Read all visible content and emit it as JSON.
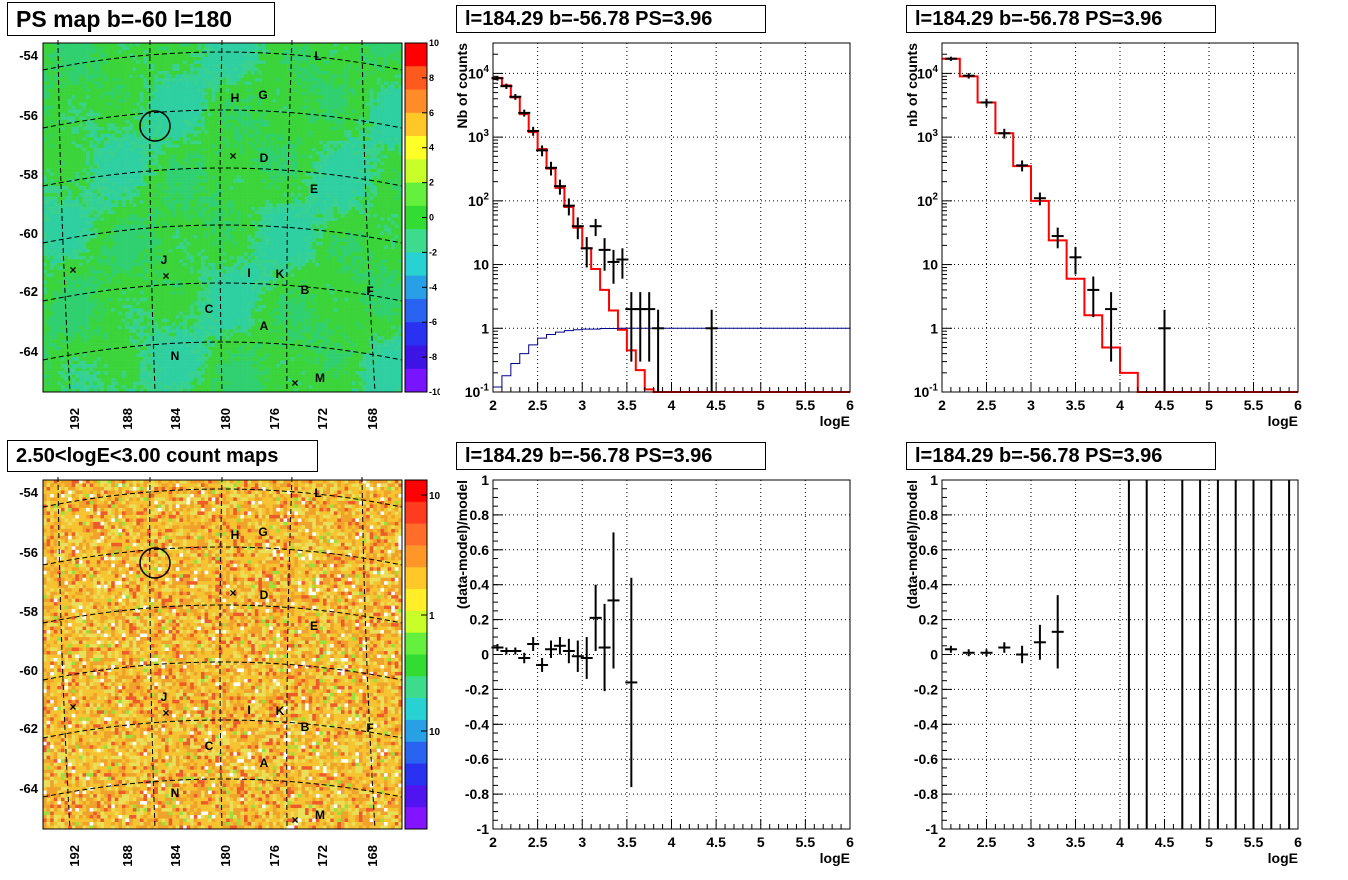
{
  "chart_data": [
    {
      "type": "heatmap",
      "title": "PS map b=-60 l=180",
      "x_ticks": [
        "192",
        "188",
        "184",
        "180",
        "176",
        "172",
        "168"
      ],
      "y_ticks": [
        "-54",
        "-56",
        "-58",
        "-60",
        "-62",
        "-64"
      ],
      "colorbar": {
        "scale": "linear",
        "range": [
          -10,
          10
        ],
        "ticks": [
          "10",
          "8",
          "6",
          "4",
          "2",
          "0",
          "-2",
          "-4",
          "-6",
          "-8",
          "-10"
        ]
      },
      "sources": [
        "L",
        "H",
        "G",
        "D",
        "E",
        "J",
        "I",
        "K",
        "B",
        "F",
        "C",
        "A",
        "N",
        "M"
      ],
      "colors": {
        "map_base": "#3bd43b",
        "map_alt": "#2ecfa0"
      }
    },
    {
      "type": "line",
      "title": "l=184.29 b=-56.78 PS=3.96",
      "xlabel": "logE",
      "ylabel": "Nb of counts",
      "xlim": [
        2,
        6
      ],
      "ylim": [
        0.1,
        30000
      ],
      "yscale": "log",
      "x_ticks": [
        "2",
        "2.5",
        "3",
        "3.5",
        "4",
        "4.5",
        "5",
        "5.5",
        "6"
      ],
      "y_ticks": [
        "10^{-1}",
        "1",
        "10",
        "10^{2}",
        "10^{3}",
        "10^{4}"
      ],
      "grid": true,
      "series": [
        {
          "role": "model",
          "color": "#ff0000",
          "bins": [
            [
              2.0,
              2.1,
              8500
            ],
            [
              2.1,
              2.2,
              6500
            ],
            [
              2.2,
              2.3,
              4200
            ],
            [
              2.3,
              2.4,
              2300
            ],
            [
              2.4,
              2.5,
              1200
            ],
            [
              2.5,
              2.6,
              650
            ],
            [
              2.6,
              2.7,
              320
            ],
            [
              2.7,
              2.8,
              160
            ],
            [
              2.8,
              2.9,
              80
            ],
            [
              2.9,
              3.0,
              38
            ],
            [
              3.0,
              3.1,
              18
            ],
            [
              3.1,
              3.2,
              8.5
            ],
            [
              3.2,
              3.3,
              4
            ],
            [
              3.3,
              3.4,
              1.9
            ],
            [
              3.4,
              3.5,
              0.95
            ],
            [
              3.5,
              3.6,
              0.45
            ],
            [
              3.6,
              3.7,
              0.22
            ],
            [
              3.7,
              3.8,
              0.11
            ],
            [
              3.8,
              3.9,
              0.1
            ],
            [
              3.9,
              4.0,
              0.1
            ],
            [
              4.0,
              6.0,
              0.1
            ]
          ]
        },
        {
          "role": "background",
          "color": "#00008b",
          "bins": [
            [
              2.0,
              2.1,
              0.12
            ],
            [
              2.1,
              2.2,
              0.18
            ],
            [
              2.2,
              2.3,
              0.28
            ],
            [
              2.3,
              2.4,
              0.4
            ],
            [
              2.4,
              2.5,
              0.55
            ],
            [
              2.5,
              2.6,
              0.7
            ],
            [
              2.6,
              2.7,
              0.8
            ],
            [
              2.7,
              2.8,
              0.87
            ],
            [
              2.8,
              2.9,
              0.92
            ],
            [
              2.9,
              3.0,
              0.95
            ],
            [
              3.0,
              3.2,
              0.97
            ],
            [
              3.2,
              3.4,
              0.99
            ],
            [
              3.4,
              6.0,
              1.0
            ]
          ]
        },
        {
          "role": "data",
          "color": "#000000",
          "points": [
            [
              2.05,
              8400,
              700
            ],
            [
              2.15,
              6300,
              600
            ],
            [
              2.25,
              4300,
              450
            ],
            [
              2.35,
              2400,
              300
            ],
            [
              2.45,
              1250,
              200
            ],
            [
              2.55,
              620,
              120
            ],
            [
              2.65,
              330,
              80
            ],
            [
              2.75,
              170,
              45
            ],
            [
              2.85,
              84,
              25
            ],
            [
              2.95,
              40,
              15
            ],
            [
              3.05,
              18,
              9
            ],
            [
              3.15,
              40,
              12
            ],
            [
              3.25,
              17,
              9
            ],
            [
              3.35,
              11,
              6
            ],
            [
              3.45,
              12,
              6
            ],
            [
              3.55,
              2,
              1.7
            ],
            [
              3.65,
              2,
              1.7
            ],
            [
              3.75,
              2,
              1.7
            ],
            [
              3.85,
              1,
              0.95
            ],
            [
              4.45,
              1,
              0.95
            ]
          ]
        }
      ]
    },
    {
      "type": "line",
      "title": "l=184.29 b=-56.78 PS=3.96",
      "xlabel": "logE",
      "ylabel": "nb of counts",
      "xlim": [
        2,
        6
      ],
      "ylim": [
        0.1,
        30000
      ],
      "yscale": "log",
      "x_ticks": [
        "2",
        "2.5",
        "3",
        "3.5",
        "4",
        "4.5",
        "5",
        "5.5",
        "6"
      ],
      "y_ticks": [
        "10^{-1}",
        "1",
        "10",
        "10^{2}",
        "10^{3}",
        "10^{4}"
      ],
      "grid": true,
      "series": [
        {
          "role": "model",
          "color": "#ff0000",
          "bins": [
            [
              2.0,
              2.2,
              17000
            ],
            [
              2.2,
              2.4,
              9000
            ],
            [
              2.4,
              2.6,
              3500
            ],
            [
              2.6,
              2.8,
              1150
            ],
            [
              2.8,
              3.0,
              350
            ],
            [
              3.0,
              3.2,
              100
            ],
            [
              3.2,
              3.4,
              24
            ],
            [
              3.4,
              3.6,
              6
            ],
            [
              3.6,
              3.8,
              1.6
            ],
            [
              3.8,
              4.0,
              0.5
            ],
            [
              4.0,
              4.2,
              0.2
            ],
            [
              4.2,
              6.0,
              0.1
            ]
          ]
        },
        {
          "role": "data",
          "color": "#000000",
          "points": [
            [
              2.1,
              17000,
              1300
            ],
            [
              2.3,
              9200,
              900
            ],
            [
              2.5,
              3500,
              500
            ],
            [
              2.7,
              1150,
              200
            ],
            [
              2.9,
              360,
              70
            ],
            [
              3.1,
              110,
              25
            ],
            [
              3.3,
              28,
              10
            ],
            [
              3.5,
              13,
              6
            ],
            [
              3.7,
              4,
              2.5
            ],
            [
              3.9,
              2,
              1.7
            ],
            [
              4.5,
              1,
              0.95
            ]
          ]
        }
      ]
    },
    {
      "type": "heatmap",
      "title": "2.50<logE<3.00 count maps",
      "x_ticks": [
        "192",
        "188",
        "184",
        "180",
        "176",
        "172",
        "168"
      ],
      "y_ticks": [
        "-54",
        "-56",
        "-58",
        "-60",
        "-62",
        "-64"
      ],
      "colorbar": {
        "scale": "log",
        "ticks": [
          "10",
          "1",
          "10^{-1}"
        ]
      },
      "sources": [
        "L",
        "H",
        "G",
        "D",
        "E",
        "J",
        "I",
        "K",
        "B",
        "F",
        "C",
        "A",
        "N",
        "M"
      ],
      "colors": {
        "map_a": "#f6c431",
        "map_b": "#f0a22a",
        "map_c": "#e9e05a",
        "map_d": "#ee5a2a"
      }
    },
    {
      "type": "scatter",
      "title": "l=184.29 b=-56.78 PS=3.96",
      "xlabel": "logE",
      "ylabel": "(data-model)/model",
      "xlim": [
        2,
        6
      ],
      "ylim": [
        -1,
        1
      ],
      "x_ticks": [
        "2",
        "2.5",
        "3",
        "3.5",
        "4",
        "4.5",
        "5",
        "5.5",
        "6"
      ],
      "y_ticks": [
        "-1",
        "-0.8",
        "-0.6",
        "-0.4",
        "-0.2",
        "0",
        "0.2",
        "0.4",
        "0.6",
        "0.8",
        "1"
      ],
      "grid": true,
      "series": [
        {
          "role": "residual",
          "color": "#000000",
          "points": [
            [
              2.05,
              0.04,
              0.02
            ],
            [
              2.15,
              0.02,
              0.02
            ],
            [
              2.25,
              0.02,
              0.02
            ],
            [
              2.35,
              -0.02,
              0.03
            ],
            [
              2.45,
              0.06,
              0.04
            ],
            [
              2.55,
              -0.06,
              0.04
            ],
            [
              2.65,
              0.03,
              0.05
            ],
            [
              2.75,
              0.05,
              0.05
            ],
            [
              2.85,
              0.02,
              0.07
            ],
            [
              2.95,
              -0.01,
              0.09
            ],
            [
              3.05,
              -0.02,
              0.12
            ],
            [
              3.15,
              0.21,
              0.19
            ],
            [
              3.25,
              0.04,
              0.25
            ],
            [
              3.35,
              0.31,
              0.39
            ],
            [
              3.55,
              -0.16,
              0.6
            ]
          ]
        }
      ]
    },
    {
      "type": "scatter",
      "title": "l=184.29 b=-56.78 PS=3.96",
      "xlabel": "logE",
      "ylabel": "(data-model)/model",
      "xlim": [
        2,
        6
      ],
      "ylim": [
        -1,
        1
      ],
      "x_ticks": [
        "2",
        "2.5",
        "3",
        "3.5",
        "4",
        "4.5",
        "5",
        "5.5",
        "6"
      ],
      "y_ticks": [
        "-1",
        "-0.8",
        "-0.6",
        "-0.4",
        "-0.2",
        "0",
        "0.2",
        "0.4",
        "0.6",
        "0.8",
        "1"
      ],
      "grid": true,
      "series": [
        {
          "role": "residual",
          "color": "#000000",
          "points": [
            [
              2.1,
              0.03,
              0.02
            ],
            [
              2.3,
              0.01,
              0.02
            ],
            [
              2.5,
              0.01,
              0.02
            ],
            [
              2.7,
              0.04,
              0.03
            ],
            [
              2.9,
              0.0,
              0.05
            ],
            [
              3.1,
              0.07,
              0.1
            ],
            [
              3.3,
              0.13,
              0.21
            ]
          ]
        },
        {
          "role": "residual-unbounded",
          "color": "#000000",
          "x": [
            4.1,
            4.3,
            4.7,
            4.9,
            5.1,
            5.3,
            5.5,
            5.7,
            5.9
          ]
        }
      ]
    }
  ]
}
